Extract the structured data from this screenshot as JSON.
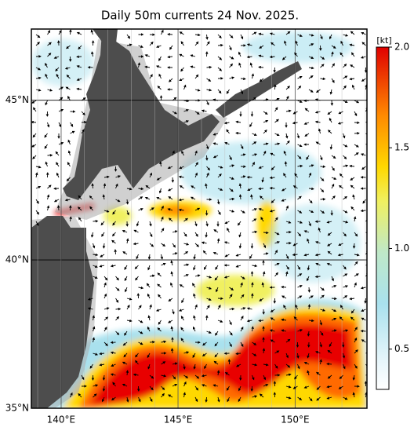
{
  "title": "Daily 50m currents 24 Nov. 2025.",
  "map": {
    "lon_range": [
      138.73,
      153.07
    ],
    "lat_range": [
      35,
      47.1
    ],
    "lon_ticks": [
      {
        "value": 140,
        "label": "140°E"
      },
      {
        "value": 145,
        "label": "145°E"
      },
      {
        "value": 150,
        "label": "150°E"
      }
    ],
    "lat_ticks": [
      {
        "value": 35,
        "label": "35°N"
      },
      {
        "value": 40,
        "label": "40°N"
      },
      {
        "value": 45,
        "label": "45°N"
      }
    ]
  },
  "colorbar": {
    "unit": "[kt]",
    "range": [
      0.3,
      2.0
    ],
    "ticks": [
      0.5,
      {
        "value": 1,
        "label": "1.0"
      },
      1.5,
      {
        "value": 2,
        "label": "2.0"
      }
    ]
  }
}
